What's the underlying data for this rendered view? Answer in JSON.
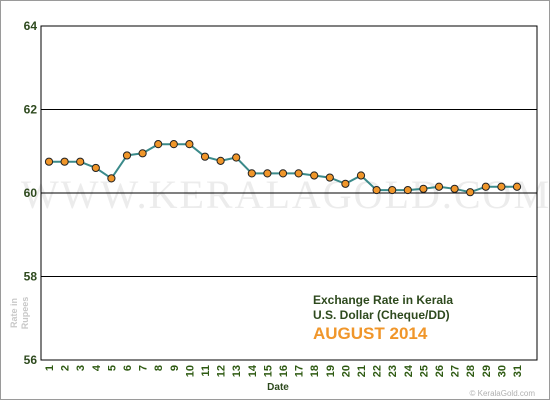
{
  "chart_data": {
    "type": "line",
    "title": "",
    "xlabel": "Date",
    "ylabel": "Rate in Rupees",
    "x": [
      1,
      2,
      3,
      4,
      5,
      6,
      7,
      8,
      9,
      10,
      11,
      12,
      13,
      14,
      15,
      16,
      17,
      18,
      19,
      20,
      21,
      22,
      23,
      24,
      25,
      26,
      27,
      28,
      29,
      30,
      31
    ],
    "series": [
      {
        "values": [
          60.75,
          60.75,
          60.75,
          60.6,
          60.35,
          60.9,
          60.95,
          61.17,
          61.17,
          61.17,
          60.87,
          60.77,
          60.85,
          60.47,
          60.47,
          60.47,
          60.47,
          60.42,
          60.37,
          60.22,
          60.42,
          60.07,
          60.07,
          60.07,
          60.1,
          60.15,
          60.1,
          60.02,
          60.15,
          60.15,
          60.15
        ]
      }
    ],
    "ylim": [
      56,
      64
    ],
    "yticks": [
      56,
      58,
      60,
      62,
      64
    ],
    "grid": true,
    "annotations": [
      "Exchange Rate in Kerala",
      "U.S. Dollar (Cheque/DD)",
      "AUGUST 2014"
    ],
    "watermark": "WWW.KERALAGOLD.COM",
    "credit": "© KeralaGold.com",
    "colors": {
      "line": "#3a8a8a",
      "marker": "#f0962a",
      "marker_edge": "#222222",
      "grid": "#000000",
      "annotation_accent": "#f0962a"
    }
  }
}
